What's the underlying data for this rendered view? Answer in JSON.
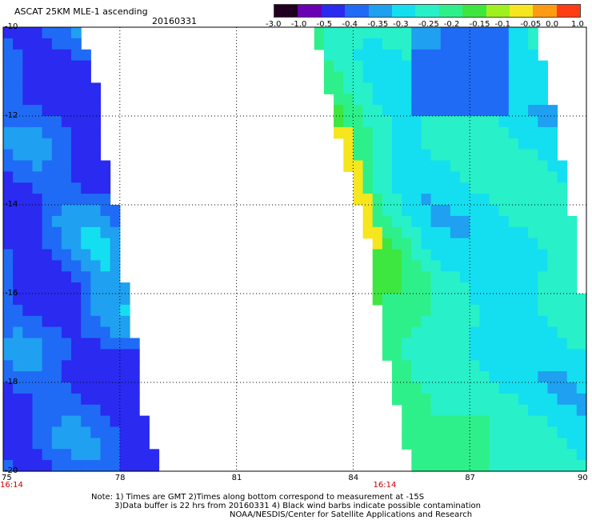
{
  "header": {
    "title": "ASCAT 25KM MLE-1 ascending",
    "date": "20160331"
  },
  "colorbar": {
    "labels": [
      "-3.0",
      "-1.0",
      "-0.5",
      "-0.4",
      "-0.35",
      "-0.3",
      "-0.25",
      "-0.2",
      "-0.15",
      "-0.1",
      "-0.05",
      "0.0",
      "1.0"
    ],
    "colors": [
      "#200020",
      "#6a00b4",
      "#2a2af0",
      "#1f6bf5",
      "#1fa0f0",
      "#14dff0",
      "#28f0c8",
      "#2ef08a",
      "#3ee640",
      "#a0f020",
      "#f5e61e",
      "#ff9a14",
      "#ff3c14"
    ]
  },
  "chart_data": {
    "type": "heatmap",
    "title": "ASCAT 25KM MLE-1 ascending",
    "subtitle": "20160331",
    "xlabel": "",
    "ylabel": "",
    "x_ticks": [
      "75",
      "78",
      "81",
      "84",
      "87",
      "90"
    ],
    "y_ticks": [
      "-10",
      "-12",
      "-14",
      "-16",
      "-18",
      "-20"
    ],
    "xlim": [
      75,
      90
    ],
    "ylim": [
      -20,
      -10
    ],
    "grid": true,
    "time_labels": [
      {
        "text": "16:14",
        "lon": 75
      },
      {
        "text": "16:14",
        "lon": 84.6
      }
    ],
    "swaths": [
      {
        "name": "west",
        "left_lon": 75.0,
        "right_edge": [
          [
            -10,
            77.1
          ],
          [
            -11.3,
            77.5
          ],
          [
            -12.5,
            77.6
          ],
          [
            -14,
            78.0
          ],
          [
            -15.2,
            78.1
          ],
          [
            -17,
            78.5
          ],
          [
            -18.6,
            78.7
          ],
          [
            -20,
            79.2
          ]
        ]
      },
      {
        "name": "east",
        "left_edge": [
          [
            -10,
            82.9
          ],
          [
            -12,
            83.4
          ],
          [
            -13.5,
            83.8
          ],
          [
            -15,
            84.3
          ],
          [
            -17,
            84.6
          ],
          [
            -19,
            85.1
          ],
          [
            -20,
            85.5
          ]
        ],
        "right_edge": [
          [
            -10,
            88.8
          ],
          [
            -12,
            89.3
          ],
          [
            -14,
            89.7
          ],
          [
            -16,
            90
          ],
          [
            -20,
            90
          ]
        ]
      }
    ]
  },
  "notes": {
    "line1": "Note: 1) Times are GMT 2)Times along bottom correspond to measurement at -15S",
    "line2": "3)Data buffer is 22 hrs from 20160331 4) Black wind barbs indicate possible contamination",
    "line3": "NOAA/NESDIS/Center for Satellite Applications and Research"
  }
}
